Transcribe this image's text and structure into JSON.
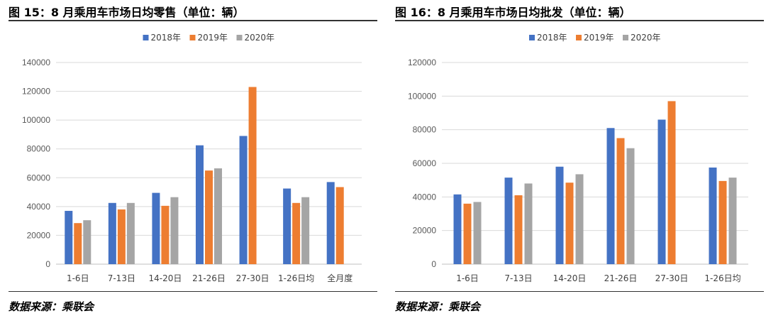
{
  "figures": [
    {
      "title": "图 15：8 月乘用车市场日均零售（单位：辆）",
      "source": "数据来源：乘联会"
    },
    {
      "title": "图 16：8 月乘用车市场日均批发（单位：辆）",
      "source": "数据来源：乘联会"
    }
  ],
  "chart_data": [
    {
      "type": "bar",
      "title": "图 15：8 月乘用车市场日均零售（单位：辆）",
      "categories": [
        "1-6日",
        "7-13日",
        "14-20日",
        "21-26日",
        "27-30日",
        "1-26日均",
        "全月度"
      ],
      "series": [
        {
          "name": "2018年",
          "color": "#4472C4",
          "values": [
            37000,
            42500,
            49500,
            82500,
            89000,
            52500,
            57000
          ]
        },
        {
          "name": "2019年",
          "color": "#ED7D31",
          "values": [
            28500,
            38000,
            40500,
            65000,
            123000,
            42500,
            53500
          ]
        },
        {
          "name": "2020年",
          "color": "#A5A5A5",
          "values": [
            30500,
            42500,
            46500,
            66500,
            null,
            46500,
            null
          ]
        }
      ],
      "ylim": [
        0,
        140000
      ],
      "yticks": [
        0,
        20000,
        40000,
        60000,
        80000,
        100000,
        120000,
        140000
      ],
      "grid": true,
      "legend": "top-center"
    },
    {
      "type": "bar",
      "title": "图 16：8 月乘用车市场日均批发（单位：辆）",
      "categories": [
        "1-6日",
        "7-13日",
        "14-20日",
        "21-26日",
        "27-30日",
        "1-26日均"
      ],
      "series": [
        {
          "name": "2018年",
          "color": "#4472C4",
          "values": [
            41500,
            51500,
            58000,
            81000,
            86000,
            57500
          ]
        },
        {
          "name": "2019年",
          "color": "#ED7D31",
          "values": [
            36000,
            41000,
            48500,
            75000,
            97000,
            49500
          ]
        },
        {
          "name": "2020年",
          "color": "#A5A5A5",
          "values": [
            37000,
            48000,
            53500,
            69000,
            null,
            51500
          ]
        }
      ],
      "ylim": [
        0,
        120000
      ],
      "yticks": [
        0,
        20000,
        40000,
        60000,
        80000,
        100000,
        120000
      ],
      "grid": true,
      "legend": "top-center"
    }
  ]
}
